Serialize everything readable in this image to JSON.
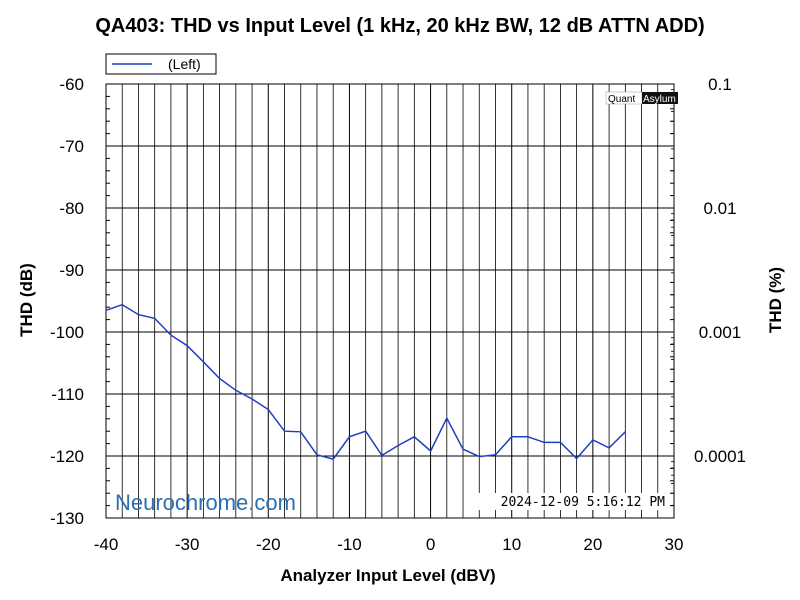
{
  "chart_data": {
    "type": "line",
    "title": "QA403: THD vs Input Level (1 kHz, 20 kHz BW, 12 dB ATTN ADD)",
    "xlabel": "Analyzer Input Level (dBV)",
    "ylabel": "THD (dB)",
    "y2label": "THD (%)",
    "xlim": [
      -40,
      30
    ],
    "ylim": [
      -130,
      -60
    ],
    "x_ticks": [
      "-40",
      "-30",
      "-20",
      "-10",
      "0",
      "10",
      "20",
      "30"
    ],
    "y_ticks": [
      "-60",
      "-70",
      "-80",
      "-90",
      "-100",
      "-110",
      "-120",
      "-130"
    ],
    "y2_ticks": [
      {
        "label": "0.1",
        "db": -60
      },
      {
        "label": "0.01",
        "db": -80
      },
      {
        "label": "0.001",
        "db": -100
      },
      {
        "label": "0.0001",
        "db": -120
      }
    ],
    "grid": true,
    "legend_position": "top-left",
    "series": [
      {
        "name": "(Left)",
        "color": "#1f3fbf",
        "x": [
          -40,
          -38,
          -36,
          -34,
          -32,
          -30,
          -28,
          -26,
          -24,
          -22,
          -20,
          -18,
          -16,
          -14,
          -12,
          -10,
          -8,
          -6,
          -4,
          -2,
          0,
          2,
          4,
          6,
          8,
          10,
          12,
          14,
          16,
          18,
          20,
          22,
          24
        ],
        "y": [
          -96.5,
          -95.6,
          -97.2,
          -97.8,
          -100.5,
          -102.2,
          -104.8,
          -107.5,
          -109.4,
          -110.8,
          -112.5,
          -116.0,
          -116.1,
          -119.8,
          -120.5,
          -116.9,
          -116.0,
          -119.9,
          -118.3,
          -116.9,
          -119.2,
          -113.9,
          -118.9,
          -120.1,
          -119.8,
          -116.9,
          -116.9,
          -117.8,
          -117.8,
          -120.4,
          -117.4,
          -118.7,
          -116.1
        ]
      }
    ],
    "watermark": "Neurochrome.com",
    "timestamp": "2024-12-09 5:16:12 PM",
    "logo": {
      "part1": "Quant",
      "part2": "Asylum"
    }
  }
}
